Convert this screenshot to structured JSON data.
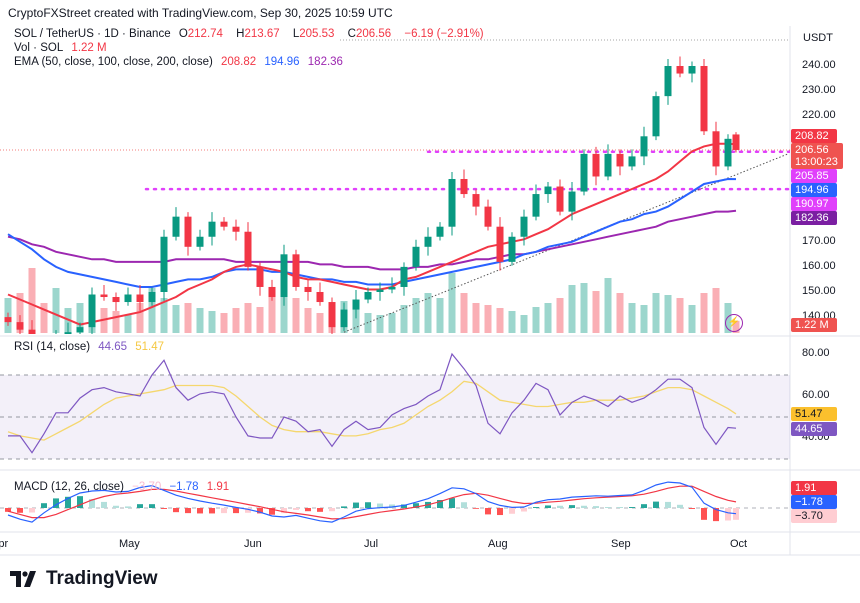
{
  "credit": "CryptoFXStreet created with TradingView.com, Sep 30, 2025 10:59 UTC",
  "legend": {
    "symbol": "SOL / TetherUS · 1D · Binance",
    "o_label": "O",
    "o": "212.74",
    "h_label": "H",
    "h": "213.67",
    "l_label": "L",
    "l": "205.53",
    "c_label": "C",
    "c": "206.56",
    "change": "−6.19 (−2.91%)",
    "vol_label": "Vol · SOL",
    "vol": "1.22 M",
    "ema_label": "EMA (50, close, 100, close, 200, close)",
    "ema50": "208.82",
    "ema100": "194.96",
    "ema200": "182.36"
  },
  "rsi_legend": {
    "label": "RSI (14, close)",
    "rsi": "44.65",
    "ma": "51.47"
  },
  "macd_legend": {
    "label": "MACD (12, 26, close)",
    "hist": "−3.70",
    "macd": "−1.78",
    "signal": "1.91"
  },
  "price_axis": {
    "currency": "USDT",
    "ticks": [
      "240.00",
      "230.00",
      "220.00",
      "170.00",
      "160.00",
      "150.00",
      "140.00"
    ]
  },
  "rsi_axis": {
    "ticks": [
      "80.00",
      "60.00",
      "40.00"
    ]
  },
  "badges_price": [
    {
      "text": "208.82",
      "color": "#f23645"
    },
    {
      "text": "206.56",
      "sub": "13:00:23",
      "color": "#ef5350"
    },
    {
      "text": "205.85",
      "color": "#e040fb"
    },
    {
      "text": "194.96",
      "color": "#2962ff"
    },
    {
      "text": "190.97",
      "color": "#e040fb"
    },
    {
      "text": "182.36",
      "color": "#7b1fa2"
    }
  ],
  "badge_volume": {
    "text": "1.22 M",
    "color": "#ef5350"
  },
  "badges_rsi": [
    {
      "text": "51.47",
      "color": "#fbc02d",
      "text_color": "#131722"
    },
    {
      "text": "44.65",
      "color": "#7e57c2",
      "text_color": "#ffffff"
    }
  ],
  "badges_macd": [
    {
      "text": "1.91",
      "color": "#f23645",
      "text_color": "#ffffff"
    },
    {
      "text": "−1.78",
      "color": "#2962ff",
      "text_color": "#ffffff"
    },
    {
      "text": "−3.70",
      "color": "#ffcdd2",
      "text_color": "#131722"
    }
  ],
  "months": [
    "Apr",
    "May",
    "Jun",
    "Jul",
    "Aug",
    "Sep",
    "Oct"
  ],
  "brand": "TradingView",
  "colors": {
    "up": "#089981",
    "down": "#f23645",
    "ema50": "#f23645",
    "ema100": "#2962ff",
    "ema200": "#9c27b0",
    "levels": "#e040fb",
    "rsi": "#7e57c2",
    "rsi_ma": "#f5d76e",
    "macd": "#2962ff",
    "signal": "#f23645"
  },
  "chart_data": {
    "type": "candlestick",
    "symbol": "SOL / TetherUS",
    "interval": "1D",
    "ylim": [
      135,
      250
    ],
    "dates": [
      "04-01",
      "04-04",
      "04-07",
      "04-10",
      "04-13",
      "04-16",
      "04-19",
      "04-22",
      "04-25",
      "04-28",
      "05-01",
      "05-04",
      "05-07",
      "05-10",
      "05-13",
      "05-16",
      "05-19",
      "05-22",
      "05-25",
      "05-28",
      "05-31",
      "06-03",
      "06-06",
      "06-09",
      "06-12",
      "06-15",
      "06-18",
      "06-21",
      "06-24",
      "06-27",
      "06-30",
      "07-03",
      "07-06",
      "07-09",
      "07-12",
      "07-15",
      "07-18",
      "07-21",
      "07-24",
      "07-27",
      "07-30",
      "08-02",
      "08-05",
      "08-08",
      "08-11",
      "08-14",
      "08-17",
      "08-20",
      "08-23",
      "08-26",
      "08-29",
      "09-01",
      "09-04",
      "09-07",
      "09-10",
      "09-13",
      "09-16",
      "09-19",
      "09-22",
      "09-25",
      "09-28",
      "09-30"
    ],
    "close": [
      138,
      135,
      130,
      128,
      132,
      134,
      136,
      149,
      148,
      146,
      149,
      146,
      150,
      172,
      180,
      168,
      172,
      178,
      176,
      174,
      160,
      152,
      148,
      165,
      152,
      150,
      146,
      136,
      143,
      147,
      150,
      151,
      152,
      160,
      168,
      172,
      176,
      195,
      189,
      184,
      176,
      162,
      172,
      180,
      189,
      192,
      182,
      190,
      205,
      196,
      205,
      200,
      204,
      212,
      228,
      240,
      237,
      240,
      214,
      200,
      211,
      206.56
    ],
    "last_candle": {
      "open": 212.74,
      "high": 213.67,
      "low": 205.53,
      "close": 206.56
    },
    "volume_m": [
      3.5,
      4.0,
      6.5,
      3.0,
      4.5,
      2.5,
      3.0,
      2.0,
      2.5,
      2.2,
      1.8,
      3.0,
      4.5,
      3.5,
      2.8,
      3.0,
      2.5,
      2.2,
      2.0,
      2.5,
      3.0,
      2.6,
      3.8,
      4.5,
      3.5,
      2.5,
      2.0,
      2.4,
      3.2,
      2.8,
      2.0,
      1.8,
      2.0,
      2.8,
      3.5,
      4.0,
      3.5,
      6.0,
      4.0,
      3.0,
      2.8,
      2.5,
      2.2,
      1.8,
      2.6,
      3.0,
      3.5,
      4.8,
      5.0,
      4.2,
      5.5,
      4.0,
      3.0,
      2.8,
      4.0,
      3.8,
      3.5,
      2.8,
      4.0,
      4.5,
      3.0,
      1.22
    ],
    "ema50": [
      149,
      147,
      145,
      143,
      141,
      139,
      137,
      138,
      139,
      140,
      141,
      142,
      144,
      146,
      148,
      151,
      153,
      155,
      158,
      160,
      161,
      160,
      159,
      158,
      156,
      155,
      155,
      154,
      153,
      152,
      151,
      151,
      152,
      155,
      156,
      158,
      160,
      162,
      164,
      166,
      168,
      169,
      170,
      171,
      173,
      175,
      178,
      181,
      183,
      185,
      187,
      189,
      191,
      193,
      195,
      198,
      202,
      206,
      208,
      209,
      209,
      208.82
    ],
    "ema100": [
      173,
      170,
      167,
      163,
      160,
      158,
      157,
      156,
      155,
      154,
      153,
      152,
      152,
      153,
      154,
      155,
      155,
      156,
      158,
      159,
      159,
      159,
      158,
      158,
      157,
      156,
      155,
      155,
      154,
      154,
      153,
      153,
      153,
      154,
      155,
      156,
      157,
      158,
      159,
      160,
      161,
      162,
      163,
      165,
      166,
      168,
      169,
      170,
      172,
      174,
      176,
      178,
      179,
      181,
      182,
      184,
      187,
      190,
      193,
      194,
      195,
      194.96
    ],
    "ema200": [
      172,
      171,
      169,
      168,
      166,
      165,
      164,
      163,
      163,
      162,
      162,
      162,
      162,
      162,
      163,
      163,
      163,
      163,
      163,
      162,
      162,
      162,
      162,
      162,
      162,
      162,
      161,
      161,
      160,
      160,
      160,
      159,
      159,
      159,
      160,
      160,
      161,
      161,
      162,
      163,
      163,
      164,
      165,
      165,
      166,
      167,
      168,
      169,
      170,
      171,
      172,
      173,
      174,
      175,
      176,
      178,
      179,
      180,
      181,
      182,
      182,
      182.36
    ],
    "levels": [
      205.85,
      190.97
    ],
    "trendline": [
      [
        "06-24",
        134
      ],
      [
        "10-13",
        205
      ]
    ],
    "rsi": {
      "ylim": [
        20,
        90
      ],
      "bands": [
        70,
        50,
        30
      ],
      "rsi": [
        41,
        41,
        33,
        42,
        52,
        52,
        59,
        63,
        64,
        62,
        61,
        60,
        70,
        77,
        64,
        58,
        61,
        62,
        61,
        50,
        41,
        40,
        40,
        50,
        48,
        43,
        44,
        36,
        44,
        48,
        44,
        45,
        51,
        54,
        56,
        60,
        63,
        80,
        73,
        65,
        47,
        42,
        52,
        58,
        66,
        63,
        51,
        57,
        60,
        58,
        55,
        60,
        57,
        59,
        63,
        68,
        68,
        64,
        45,
        37,
        45,
        44.65
      ],
      "ma": [
        43,
        41,
        40,
        39,
        42,
        45,
        48,
        52,
        56,
        59,
        60,
        61,
        62,
        63,
        65,
        65,
        65,
        65,
        64,
        60,
        55,
        50,
        46,
        44,
        43,
        43,
        43,
        42,
        41,
        41,
        42,
        44,
        45,
        47,
        51,
        55,
        58,
        62,
        67,
        66,
        62,
        58,
        57,
        56,
        55,
        55,
        56,
        57,
        57,
        58,
        58,
        58,
        59,
        60,
        62,
        64,
        64,
        63,
        60,
        57,
        54,
        51.47
      ]
    },
    "macd": {
      "macd": [
        -2.2,
        -3.5,
        -4.4,
        -1.5,
        1.0,
        3.0,
        4.7,
        5.3,
        5.5,
        5.0,
        5.2,
        6.4,
        7.0,
        5.5,
        4.0,
        3.0,
        2.2,
        1.5,
        0.9,
        0.2,
        -0.4,
        -1.3,
        -2.5,
        -2.8,
        -2.3,
        -3.2,
        -4.0,
        -4.4,
        -2.8,
        -1.0,
        -0.2,
        0.1,
        0.3,
        0.8,
        1.8,
        2.9,
        4.5,
        6.3,
        6.0,
        4.5,
        2.0,
        0.8,
        0.2,
        0.3,
        1.8,
        2.6,
        2.8,
        3.4,
        3.6,
        3.8,
        3.7,
        3.9,
        4.1,
        5.5,
        7.2,
        8.1,
        7.8,
        6.5,
        1.5,
        -0.5,
        -1.5,
        -1.78
      ],
      "signal": [
        -1.0,
        -2.0,
        -3.0,
        -3.0,
        -2.0,
        -0.5,
        1.0,
        2.5,
        3.6,
        4.3,
        4.7,
        5.2,
        5.8,
        5.8,
        5.3,
        4.6,
        3.9,
        3.2,
        2.5,
        1.8,
        1.1,
        0.4,
        -0.4,
        -1.2,
        -1.7,
        -2.2,
        -2.8,
        -3.4,
        -3.3,
        -2.7,
        -2.0,
        -1.3,
        -0.8,
        -0.3,
        0.3,
        1.0,
        2.0,
        3.2,
        4.2,
        4.6,
        4.0,
        3.0,
        2.0,
        1.4,
        1.5,
        1.8,
        2.1,
        2.5,
        2.9,
        3.2,
        3.4,
        3.6,
        3.8,
        4.3,
        5.2,
        6.2,
        6.8,
        6.8,
        5.2,
        3.6,
        2.4,
        1.91
      ]
    }
  }
}
